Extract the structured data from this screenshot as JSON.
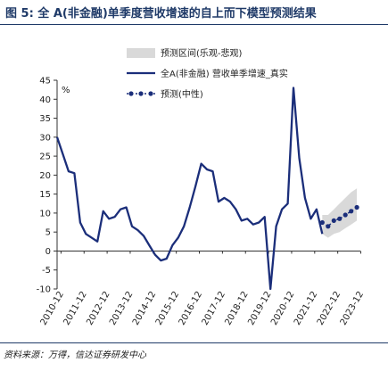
{
  "figure": {
    "title": "图 5: 全 A(非金融)单季度营收增速的自上而下模型预测结果",
    "source": "资料来源：万得，信达证券研发中心"
  },
  "chart_data": {
    "type": "line",
    "ylabel": "%",
    "ylim": [
      -10,
      45
    ],
    "yticks": [
      -10,
      -5,
      0,
      5,
      10,
      15,
      20,
      25,
      30,
      35,
      40,
      45
    ],
    "xlim": [
      2010.75,
      2023.9
    ],
    "xticks": [
      {
        "label": "2010-12",
        "x": 2010.92
      },
      {
        "label": "2011-12",
        "x": 2011.92
      },
      {
        "label": "2012-12",
        "x": 2012.92
      },
      {
        "label": "2013-12",
        "x": 2013.92
      },
      {
        "label": "2014-12",
        "x": 2014.92
      },
      {
        "label": "2015-12",
        "x": 2015.92
      },
      {
        "label": "2016-12",
        "x": 2016.92
      },
      {
        "label": "2017-12",
        "x": 2017.92
      },
      {
        "label": "2018-12",
        "x": 2018.92
      },
      {
        "label": "2019-12",
        "x": 2019.92
      },
      {
        "label": "2020-12",
        "x": 2020.92
      },
      {
        "label": "2021-12",
        "x": 2021.92
      },
      {
        "label": "2022-12",
        "x": 2022.92
      },
      {
        "label": "2023-12",
        "x": 2023.92
      }
    ],
    "legend_position": "top-right",
    "series": [
      {
        "name": "全A(非金融) 营收单季增速_真实",
        "color": "#1b2e7a",
        "style": "line",
        "x": [
          2010.75,
          2011.0,
          2011.25,
          2011.5,
          2011.75,
          2012.0,
          2012.25,
          2012.5,
          2012.75,
          2013.0,
          2013.25,
          2013.5,
          2013.75,
          2014.0,
          2014.25,
          2014.5,
          2014.75,
          2015.0,
          2015.25,
          2015.5,
          2015.75,
          2016.0,
          2016.25,
          2016.5,
          2016.75,
          2017.0,
          2017.25,
          2017.5,
          2017.75,
          2018.0,
          2018.25,
          2018.5,
          2018.75,
          2019.0,
          2019.25,
          2019.5,
          2019.75,
          2020.0,
          2020.25,
          2020.5,
          2020.75,
          2021.0,
          2021.25,
          2021.5,
          2021.75,
          2022.0,
          2022.25
        ],
        "y": [
          30.0,
          25.5,
          21.0,
          20.5,
          7.5,
          4.5,
          3.5,
          2.5,
          10.5,
          8.5,
          9.0,
          11.0,
          11.5,
          6.5,
          5.5,
          4.0,
          1.5,
          -1.0,
          -2.5,
          -2.0,
          1.5,
          3.5,
          6.5,
          11.5,
          17.0,
          23.0,
          21.5,
          21.0,
          13.0,
          14.0,
          13.0,
          11.0,
          8.0,
          8.5,
          7.0,
          7.5,
          9.0,
          -10.0,
          6.5,
          11.0,
          12.5,
          43.0,
          24.5,
          14.0,
          8.5,
          11.0,
          4.5
        ]
      },
      {
        "name": "预测(中性)",
        "color": "#1b2e7a",
        "style": "dotted-markers",
        "x": [
          2022.25,
          2022.5,
          2022.75,
          2023.0,
          2023.25,
          2023.5,
          2023.75
        ],
        "y": [
          7.5,
          6.5,
          8.0,
          8.5,
          9.5,
          10.5,
          11.5
        ]
      }
    ],
    "band": {
      "name": "预测区间(乐观-悲观)",
      "color": "#d9d9d9",
      "x": [
        2022.25,
        2022.5,
        2022.75,
        2023.0,
        2023.25,
        2023.5,
        2023.75
      ],
      "upper": [
        9.5,
        9.5,
        11.0,
        12.5,
        14.0,
        15.5,
        16.5
      ],
      "lower": [
        4.5,
        3.5,
        4.5,
        5.0,
        6.0,
        7.0,
        8.0
      ]
    }
  }
}
